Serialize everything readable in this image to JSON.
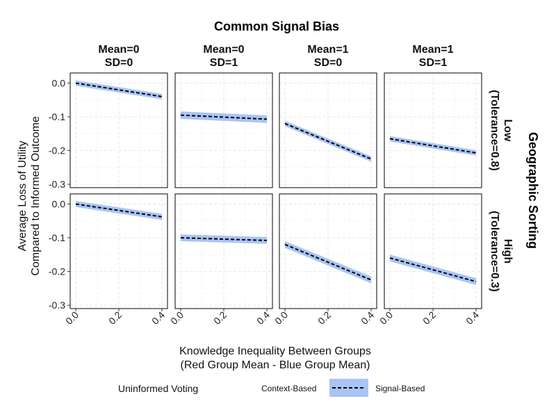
{
  "chart_data": {
    "type": "line",
    "title": "Common Signal Bias",
    "xlabel_line1": "Knowledge Inequality Between Groups",
    "xlabel_line2": "(Red Group Mean - Blue Group Mean)",
    "ylabel_line1": "Average Loss of Utility",
    "ylabel_line2": "Compared to Informed Outcome",
    "row_facet_title": "Geographic Sorting",
    "xlim": [
      0,
      0.4
    ],
    "ylim": [
      -0.31,
      0.03
    ],
    "x_ticks": [
      0.0,
      0.2,
      0.4
    ],
    "x_tick_labels": [
      "0.0",
      "0.2",
      "0.4"
    ],
    "y_ticks": [
      0.0,
      -0.1,
      -0.2,
      -0.3
    ],
    "y_tick_labels": [
      "0.0",
      "-0.1",
      "-0.2",
      "-0.3"
    ],
    "grid": true,
    "columns": [
      {
        "line1": "Mean=0",
        "line2": "SD=0"
      },
      {
        "line1": "Mean=0",
        "line2": "SD=1"
      },
      {
        "line1": "Mean=1",
        "line2": "SD=0"
      },
      {
        "line1": "Mean=1",
        "line2": "SD=1"
      }
    ],
    "rows": [
      {
        "line1": "Low",
        "line2": "(Tolerance=0.8)"
      },
      {
        "line1": "High",
        "line2": "(Tolerance=0.3)"
      }
    ],
    "legend": {
      "title": "Uninformed Voting",
      "position": "bottom",
      "items": [
        {
          "label": "Context-Based",
          "color": "#a9c4f5"
        },
        {
          "label": "Signal-Based",
          "color": "#000000"
        }
      ]
    },
    "panels": [
      {
        "row": 0,
        "col": 0,
        "x": [
          0,
          0.4
        ],
        "y": [
          0.0,
          -0.04
        ],
        "band_halfwidth": 0.008
      },
      {
        "row": 0,
        "col": 1,
        "x": [
          0,
          0.4
        ],
        "y": [
          -0.095,
          -0.107
        ],
        "band_halfwidth": 0.011
      },
      {
        "row": 0,
        "col": 2,
        "x": [
          0,
          0.4
        ],
        "y": [
          -0.12,
          -0.225
        ],
        "band_halfwidth": 0.008
      },
      {
        "row": 0,
        "col": 3,
        "x": [
          0,
          0.4
        ],
        "y": [
          -0.165,
          -0.207
        ],
        "band_halfwidth": 0.008
      },
      {
        "row": 1,
        "col": 0,
        "x": [
          0,
          0.4
        ],
        "y": [
          0.0,
          -0.038
        ],
        "band_halfwidth": 0.009
      },
      {
        "row": 1,
        "col": 1,
        "x": [
          0,
          0.4
        ],
        "y": [
          -0.1,
          -0.108
        ],
        "band_halfwidth": 0.01
      },
      {
        "row": 1,
        "col": 2,
        "x": [
          0,
          0.4
        ],
        "y": [
          -0.12,
          -0.225
        ],
        "band_halfwidth": 0.01
      },
      {
        "row": 1,
        "col": 3,
        "x": [
          0,
          0.4
        ],
        "y": [
          -0.16,
          -0.23
        ],
        "band_halfwidth": 0.01
      }
    ]
  }
}
